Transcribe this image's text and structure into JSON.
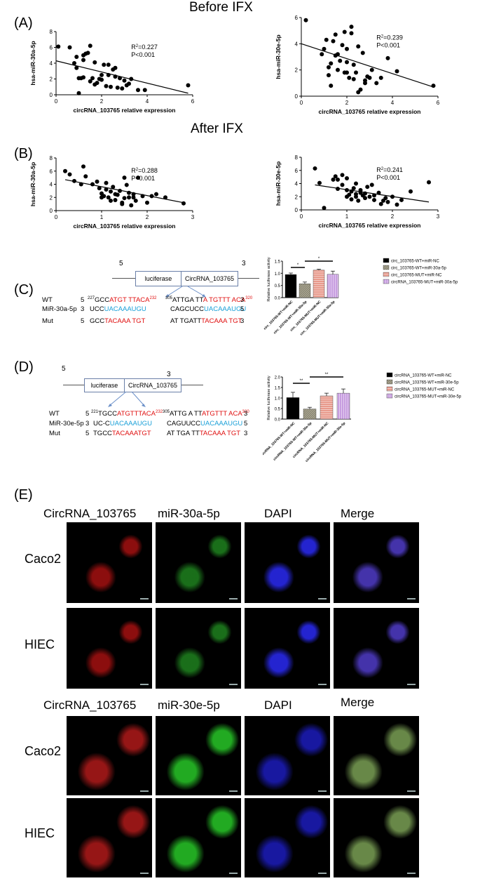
{
  "sections": {
    "before_title": "Before IFX",
    "after_title": "After IFX",
    "labels": {
      "A": "(A)",
      "B": "(B)",
      "C": "(C)",
      "D": "(D)",
      "E": "(E)"
    }
  },
  "chart_data": [
    {
      "id": "A1",
      "type": "scatter",
      "xlabel": "circRNA_103765 relative expression",
      "ylabel": "hsa-miR-30a-5p",
      "xlim": [
        0,
        6
      ],
      "ylim": [
        0,
        8
      ],
      "xticks": [
        0,
        2,
        4,
        6
      ],
      "yticks": [
        0,
        2,
        4,
        6,
        8
      ],
      "annotation_r2": "R",
      "annotation_r2_val": "=0.227",
      "annotation_p": "P<0.001",
      "x": [
        0.1,
        0.6,
        0.8,
        0.9,
        1.0,
        1.0,
        1.1,
        1.2,
        1.2,
        1.3,
        1.4,
        1.5,
        1.6,
        1.7,
        1.7,
        1.8,
        1.9,
        2.0,
        2.1,
        2.2,
        2.3,
        2.3,
        2.4,
        2.5,
        2.6,
        2.7,
        2.8,
        2.9,
        3.0,
        3.1,
        3.3,
        3.6,
        3.9,
        5.8,
        1.5,
        2.0,
        0.9,
        2.6,
        3.2,
        1.2
      ],
      "y": [
        6.1,
        6.0,
        4.0,
        3.4,
        0.2,
        2.1,
        2.1,
        4.4,
        2.2,
        5.2,
        5.3,
        6.2,
        2.1,
        1.3,
        4.1,
        1.5,
        2.0,
        2.5,
        3.8,
        1.1,
        2.5,
        3.8,
        1.0,
        3.2,
        3.4,
        0.9,
        2.1,
        0.8,
        1.8,
        1.2,
        2.0,
        0.6,
        0.6,
        1.2,
        1.7,
        1.9,
        4.8,
        2.3,
        1.4,
        5.0
      ],
      "fit": [
        [
          0,
          4.3
        ],
        [
          5.8,
          0.2
        ]
      ]
    },
    {
      "id": "A2",
      "type": "scatter",
      "xlabel": "circRNA_103765 relative expression",
      "ylabel": "hsa-miR-30e-5p",
      "xlim": [
        0,
        6
      ],
      "ylim": [
        0,
        6
      ],
      "xticks": [
        0,
        2,
        4,
        6
      ],
      "yticks": [
        0,
        2,
        4,
        6
      ],
      "annotation_r2": "R",
      "annotation_r2_val": "=0.239",
      "annotation_p": "P<0.001",
      "x": [
        0.2,
        0.9,
        1.0,
        1.1,
        1.2,
        1.3,
        1.3,
        1.4,
        1.5,
        1.5,
        1.6,
        1.7,
        1.8,
        1.9,
        1.9,
        2.0,
        2.0,
        2.1,
        2.2,
        2.2,
        2.3,
        2.3,
        2.4,
        2.5,
        2.5,
        2.6,
        2.7,
        2.8,
        2.9,
        3.0,
        3.1,
        3.3,
        3.5,
        3.8,
        4.2,
        5.8,
        1.6,
        2.0,
        2.8,
        1.2
      ],
      "y": [
        5.8,
        3.2,
        3.6,
        4.3,
        2.2,
        0.8,
        2.5,
        4.2,
        3.1,
        4.7,
        3.2,
        2.7,
        3.9,
        1.8,
        4.9,
        1.8,
        3.6,
        1.4,
        4.8,
        5.3,
        1.3,
        2.4,
        1.8,
        0.3,
        3.8,
        0.5,
        3.3,
        1.0,
        1.5,
        1.4,
        2.0,
        1.0,
        1.4,
        2.9,
        1.9,
        0.8,
        2.0,
        2.6,
        1.2,
        1.6
      ],
      "fit": [
        [
          0,
          4.0
        ],
        [
          5.8,
          0.7
        ]
      ]
    },
    {
      "id": "B1",
      "type": "scatter",
      "xlabel": "circRNA_103765 relative expression",
      "ylabel": "hsa-miR-30a-5p",
      "xlim": [
        0,
        3
      ],
      "ylim": [
        0,
        8
      ],
      "xticks": [
        0,
        1,
        2,
        3
      ],
      "yticks": [
        0,
        2,
        4,
        6,
        8
      ],
      "annotation_r2": "R",
      "annotation_r2_val": "=0.288",
      "annotation_p": "P<0.001",
      "x": [
        0.2,
        0.3,
        0.4,
        0.55,
        0.6,
        0.65,
        0.8,
        0.9,
        0.95,
        1.0,
        1.0,
        1.05,
        1.1,
        1.1,
        1.15,
        1.2,
        1.25,
        1.3,
        1.3,
        1.35,
        1.4,
        1.45,
        1.5,
        1.5,
        1.55,
        1.6,
        1.65,
        1.7,
        1.7,
        1.75,
        1.8,
        1.9,
        2.0,
        2.1,
        2.2,
        2.4,
        2.8,
        1.45,
        1.2,
        1.6
      ],
      "y": [
        6.0,
        5.5,
        4.5,
        4.0,
        6.7,
        5.2,
        4.0,
        4.4,
        3.4,
        2.6,
        2.0,
        2.2,
        3.2,
        4.2,
        2.0,
        1.5,
        3.6,
        2.5,
        1.6,
        2.4,
        3.0,
        1.2,
        1.9,
        5.0,
        3.9,
        2.0,
        0.8,
        2.0,
        2.5,
        1.5,
        5.0,
        2.2,
        1.2,
        2.2,
        2.5,
        2.0,
        1.1,
        1.0,
        2.9,
        2.7
      ],
      "fit": [
        [
          0.2,
          4.7
        ],
        [
          2.8,
          1.2
        ]
      ]
    },
    {
      "id": "B2",
      "type": "scatter",
      "xlabel": "circRNA_103765 relative expression",
      "ylabel": "hsa-miR-30e-5p",
      "xlim": [
        0,
        3
      ],
      "ylim": [
        0,
        8
      ],
      "xticks": [
        0,
        1,
        2,
        3
      ],
      "yticks": [
        0,
        2,
        4,
        6,
        8
      ],
      "annotation_r2": "R",
      "annotation_r2_val": "=0.241",
      "annotation_p": "P<0.001",
      "x": [
        0.3,
        0.4,
        0.5,
        0.7,
        0.75,
        0.8,
        0.9,
        0.9,
        1.0,
        1.0,
        1.05,
        1.1,
        1.1,
        1.15,
        1.2,
        1.2,
        1.25,
        1.3,
        1.3,
        1.35,
        1.4,
        1.4,
        1.45,
        1.5,
        1.55,
        1.6,
        1.7,
        1.75,
        1.8,
        1.85,
        1.9,
        2.0,
        2.1,
        2.2,
        2.4,
        2.8,
        1.2,
        1.0,
        1.6,
        0.8
      ],
      "y": [
        6.3,
        4.1,
        0.3,
        4.6,
        5.1,
        4.6,
        5.3,
        3.8,
        4.8,
        3.0,
        2.3,
        2.8,
        1.6,
        3.3,
        2.0,
        4.0,
        1.4,
        2.6,
        3.0,
        2.2,
        2.5,
        1.8,
        3.5,
        2.0,
        3.8,
        2.2,
        2.6,
        0.9,
        1.4,
        1.8,
        1.2,
        2.0,
        0.8,
        1.5,
        2.8,
        4.2,
        2.4,
        2.0,
        1.5,
        3.2
      ],
      "fit": [
        [
          0.3,
          3.8
        ],
        [
          2.8,
          1.2
        ]
      ]
    },
    {
      "id": "C",
      "type": "bar",
      "ylabel": "Relative luciferase activity",
      "ylim": [
        0,
        1.5
      ],
      "yticks": [
        "0.0",
        "0.5",
        "1.0",
        "1.5"
      ],
      "categories": [
        "circ_103765-WT+miR-NC",
        "circ_103765-WT+miR-30a-5p",
        "circ_103765-MUT+miR-NC",
        "circ_103765-MUT+miR-30a-5p"
      ],
      "legend": [
        "circ_103765-WT+miR-NC",
        "circ_103765-WT+miR-30a-5p",
        "circ_103765-MUT+miR-NC",
        "circRNA_103765-MUT+miR-30a-5p"
      ],
      "values": [
        0.95,
        0.57,
        1.13,
        0.96
      ],
      "errors": [
        0.06,
        0.07,
        0.04,
        0.13
      ],
      "colors": [
        "#000000",
        "#a8a490",
        "#e89a8c",
        "#c79de0"
      ],
      "sig": [
        "*",
        "*"
      ]
    },
    {
      "id": "D",
      "type": "bar",
      "ylabel": "Relative luciferase activity",
      "ylim": [
        0,
        2.0
      ],
      "yticks": [
        "0.0",
        "0.5",
        "1.0",
        "1.5",
        "2.0"
      ],
      "categories": [
        "circRNA_103765-WT+miR-NC",
        "circRNA_103765-WT+miR-30e-5p",
        "circRNA_103765-MUT+miR-NC",
        "circRNA_103765-MUT+miR-30e-5p"
      ],
      "legend": [
        "circRNA_103765-WT+miR-NC",
        "circRNA_103765-WT+miR-30e-5p",
        "circRNA_103765-MUT+miR-NC",
        "circRNA_103765-MUT+miR-30e-5p"
      ],
      "values": [
        1.02,
        0.48,
        1.1,
        1.23
      ],
      "errors": [
        0.25,
        0.08,
        0.13,
        0.2
      ],
      "colors": [
        "#000000",
        "#a8a490",
        "#e89a8c",
        "#c79de0"
      ],
      "sig": [
        "**",
        "**"
      ]
    }
  ],
  "construct_C": {
    "num_left": "5",
    "num_right": "3",
    "luciferase": "luciferase",
    "circ": "CircRNA_103765",
    "wt_label": "WT",
    "mir_label": "MiR-30a-5p",
    "mut_label": "Mut",
    "wt_p5": "5",
    "wt_pos1": "227",
    "wt_seq1_black": "GCC",
    "wt_seq1_red": "ATGT TTACA",
    "wt_pos2": "232",
    "wt_pos3": "305",
    "wt_seq2_black": "ATTGA TT",
    "wt_seq2_red": "A TGTTT ACA",
    "wt_pos4": "320",
    "wt_p3": "3",
    "mir_p3": "3",
    "mir_seq1_black": "UCC",
    "mir_seq1_blue": "UACAAAUGU",
    "mir_seq2_black": "CAGCUCC",
    "mir_seq2_blue": "UACAAAUGU",
    "mir_p5": "5",
    "mut_p5": "5",
    "mut_seq1_black": "GCC",
    "mut_seq1_red": "TACAAA TGT",
    "mut_seq2_black": "AT TGATT",
    "mut_seq2_red": "TACAAA TGT",
    "mut_p3": "3"
  },
  "construct_D": {
    "num_left": "5",
    "num_right": "3",
    "luciferase": "luciferase",
    "circ": "CircRNA_103765",
    "wt_label": "WT",
    "mir_label": "MiR-30e-5p",
    "mut_label": "Mut",
    "wt_p5": "5",
    "wt_pos1": "221",
    "wt_seq1_black": "TGCC",
    "wt_seq1_red": "ATGTTTACA",
    "wt_pos2": "232",
    "wt_pos3": "305",
    "wt_seq2_black": "ATTG A TT",
    "wt_seq2_red": "ATGTTT ACA",
    "wt_pos4": "320",
    "wt_p3": "3",
    "mir_p3": "3",
    "mir_seq1_black": "UC-C",
    "mir_seq1_blue": "UACAAAUGU",
    "mir_seq2_black": "CAGUUCC",
    "mir_seq2_blue": "UACAAAUGU",
    "mir_p5": "5",
    "mut_p5": "5",
    "mut_seq1_black": "TGCC",
    "mut_seq1_red": "TACAAATGT",
    "mut_seq2_black": "AT TGA TT",
    "mut_seq2_red": "TACAAA TGT",
    "mut_p3": "3"
  },
  "panel_E": {
    "set1": {
      "headers": [
        "CircRNA_103765",
        "miR-30a-5p",
        "DAPI",
        "Merge"
      ],
      "rows": [
        "Caco2",
        "HIEC"
      ]
    },
    "set2": {
      "headers": [
        "CircRNA_103765",
        "miR-30e-5p",
        "DAPI",
        "Merge"
      ],
      "rows": [
        "Caco2",
        "HIEC"
      ]
    }
  }
}
